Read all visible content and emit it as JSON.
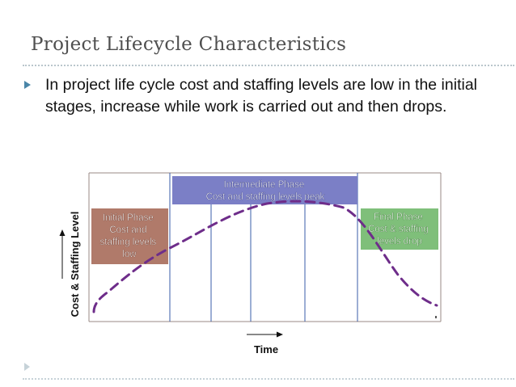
{
  "slide": {
    "title": "Project Lifecycle Characteristics",
    "bullet": "In project life cycle cost and staffing levels are low in the initial stages, increase while work is carried out and then drops."
  },
  "diagram": {
    "y_axis_label": "Cost & Staffing Level",
    "x_axis_label": "Time",
    "phases": {
      "initial": {
        "lines": [
          "Initial Phase",
          "Cost and",
          "staffing levels",
          "low"
        ],
        "color": "#b07a6a"
      },
      "intermediate": {
        "lines": [
          "Intermediate Phase",
          "Cost and staffing levels peak"
        ],
        "color": "#7b7fc6"
      },
      "final": {
        "lines": [
          "Final Phase",
          "Cost & staffing",
          "levels drop"
        ],
        "color": "#7fbf7a"
      }
    },
    "curve_color": "#6e2d8a",
    "frame_color": "#9a8a86",
    "divider_color": "#3a5ea8"
  }
}
